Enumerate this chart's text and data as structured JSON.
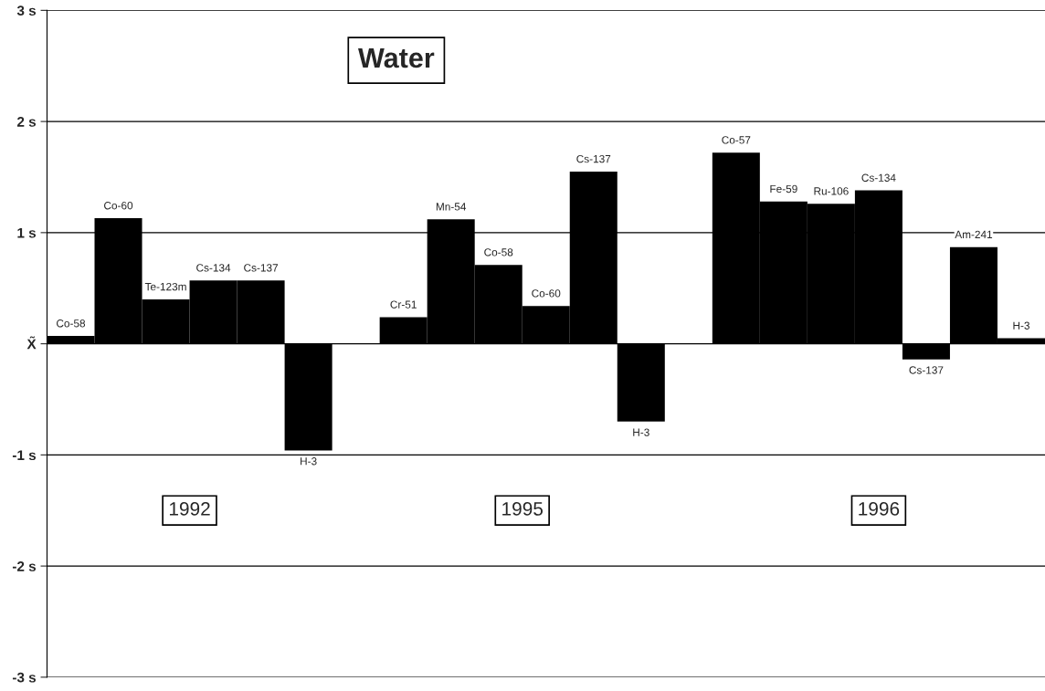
{
  "chart_data": {
    "type": "bar",
    "title": "Water",
    "categories": [
      "Co-58",
      "Co-60",
      "Te-123m",
      "Cs-134",
      "Cs-137",
      "H-3",
      null,
      "Cr-51",
      "Mn-54",
      "Co-58",
      "Co-60",
      "Cs-137",
      "H-3",
      null,
      "Co-57",
      "Fe-59",
      "Ru-106",
      "Cs-134",
      "Cs-137",
      "Am-241",
      "H-3"
    ],
    "values": [
      0.07,
      1.13,
      0.4,
      0.57,
      0.57,
      -0.96,
      null,
      0.24,
      1.12,
      0.71,
      0.34,
      1.55,
      -0.7,
      null,
      1.72,
      1.28,
      1.26,
      1.38,
      -0.14,
      0.87,
      0.05
    ],
    "color": "#000000",
    "ylim": [
      -3,
      3
    ],
    "yticks": [
      {
        "value": -3,
        "label": "-3 s"
      },
      {
        "value": -2,
        "label": "-2 s"
      },
      {
        "value": -1,
        "label": "-1 s"
      },
      {
        "value": 0,
        "label": "X̃"
      },
      {
        "value": 1,
        "label": "1 s"
      },
      {
        "value": 2,
        "label": "2 s"
      },
      {
        "value": 3,
        "label": "3 s"
      }
    ],
    "grid": "y",
    "tick_labels": "y",
    "annotations": [
      "1992",
      "1995",
      "1996"
    ]
  }
}
